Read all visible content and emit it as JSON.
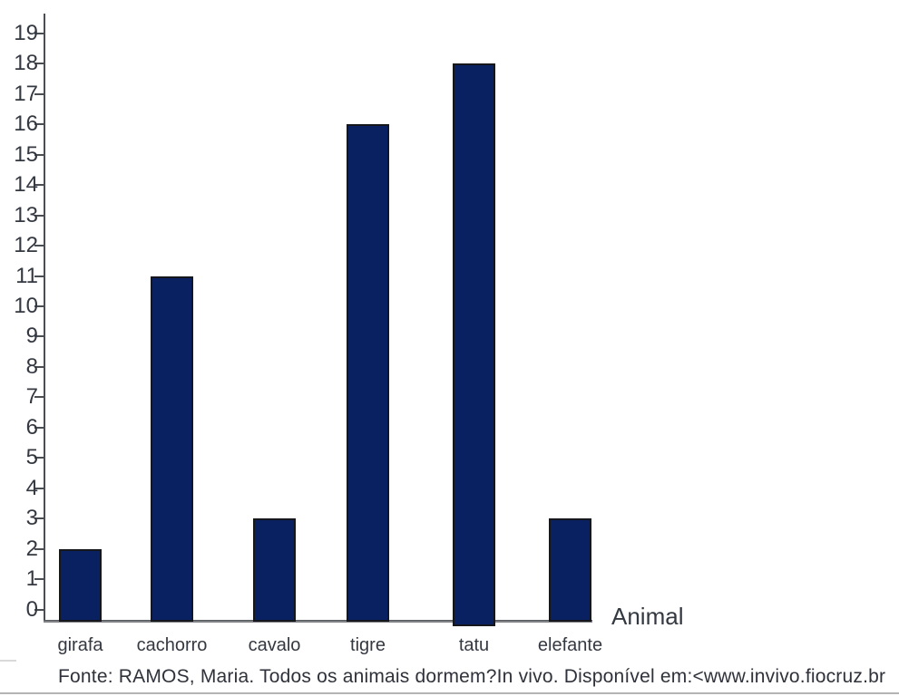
{
  "chart_data": {
    "type": "bar",
    "categories": [
      "girafa",
      "cachorro",
      "cavalo",
      "tigre",
      "tatu",
      "elefante"
    ],
    "values": [
      2,
      11,
      3,
      16,
      18,
      3
    ],
    "title": "",
    "xlabel": "Animal",
    "ylabel": "",
    "ylim": [
      0,
      19
    ],
    "ytick_step": 1,
    "ytick_labels": [
      "0",
      "1",
      "2",
      "3",
      "4",
      "5",
      "6",
      "7",
      "8",
      "9",
      "10",
      "11",
      "12",
      "13",
      "14",
      "15",
      "16",
      "17",
      "18",
      "19"
    ],
    "grid": false,
    "legend": "none",
    "colors": {
      "bar_fill": "#0a2161",
      "bar_border": "#15171c",
      "axis": "#4a4d52",
      "baseline": "#7f8184",
      "text": "#343841"
    }
  },
  "footer": {
    "source_text": "Fonte: RAMOS, Maria. Todos os animais dormem?In vivo. Disponível em:<www.invivo.fiocruz.br"
  }
}
